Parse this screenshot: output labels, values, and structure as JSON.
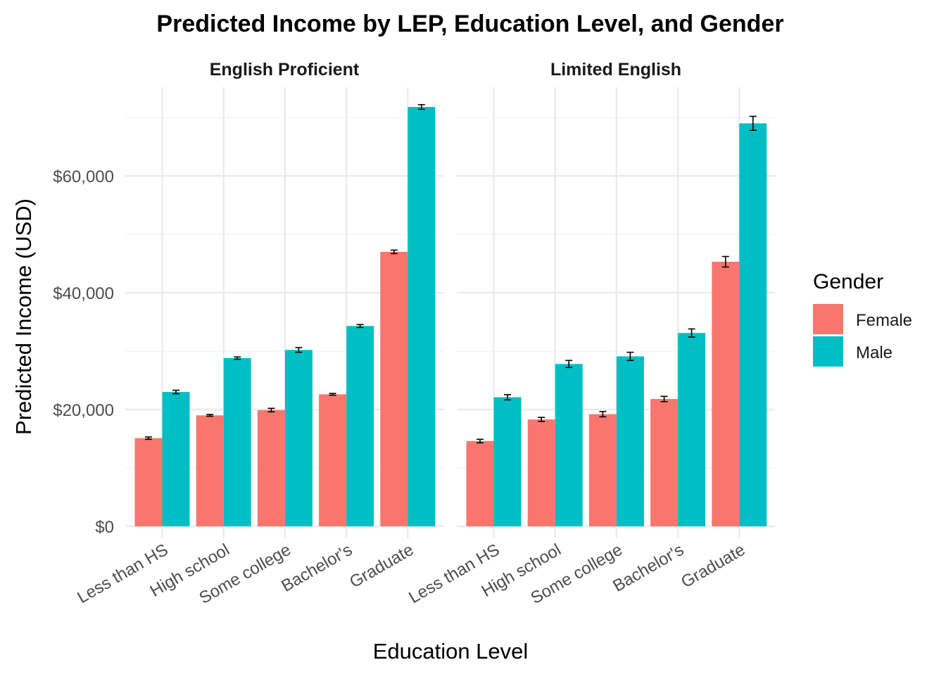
{
  "chart_data": {
    "type": "bar",
    "title": "Predicted Income by LEP, Education Level, and Gender",
    "xlabel": "Education Level",
    "ylabel": "Predicted Income (USD)",
    "ylim": [
      0,
      75000
    ],
    "yticks": [
      {
        "value": 0,
        "label": "$0"
      },
      {
        "value": 20000,
        "label": "$20,000"
      },
      {
        "value": 40000,
        "label": "$40,000"
      },
      {
        "value": 60000,
        "label": "$60,000"
      }
    ],
    "categories": [
      "Less than HS",
      "High school",
      "Some college",
      "Bachelor's",
      "Graduate"
    ],
    "grid": true,
    "legend": {
      "title": "Gender",
      "position": "right"
    },
    "series_colors": {
      "Female": "#F8766D",
      "Male": "#00BFC4"
    },
    "facets": [
      {
        "label": "English Proficient",
        "series": [
          {
            "name": "Female",
            "values": [
              15100,
              19000,
              19900,
              22600,
              47000
            ],
            "err": [
              200,
              150,
              300,
              150,
              300
            ]
          },
          {
            "name": "Male",
            "values": [
              23000,
              28800,
              30200,
              34300,
              71800
            ],
            "err": [
              300,
              200,
              400,
              250,
              400
            ]
          }
        ]
      },
      {
        "label": "Limited English",
        "series": [
          {
            "name": "Female",
            "values": [
              14600,
              18300,
              19200,
              21800,
              45300
            ],
            "err": [
              300,
              350,
              450,
              450,
              900
            ]
          },
          {
            "name": "Male",
            "values": [
              22100,
              27800,
              29100,
              33100,
              69000
            ],
            "err": [
              450,
              600,
              700,
              700,
              1200
            ]
          }
        ]
      }
    ]
  }
}
